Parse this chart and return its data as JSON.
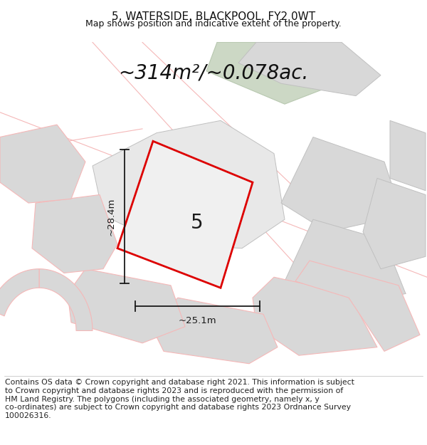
{
  "title_line1": "5, WATERSIDE, BLACKPOOL, FY2 0WT",
  "title_line2": "Map shows position and indicative extent of the property.",
  "area_text": "~314m²/~0.078ac.",
  "label_number": "5",
  "dim_width": "~25.1m",
  "dim_height": "~28.4m",
  "footer_text": "Contains OS data © Crown copyright and database right 2021. This information is subject\nto Crown copyright and database rights 2023 and is reproduced with the permission of\nHM Land Registry. The polygons (including the associated geometry, namely x, y\nco-ordinates) are subject to Crown copyright and database rights 2023 Ordnance Survey\n100026316.",
  "bg_color": "#ffffff",
  "plot_fill_color": "#f0f0f0",
  "plot_edge_color": "#dd0000",
  "neighbor_fill_light": "#e8e8e8",
  "neighbor_fill": "#d8d8d8",
  "neighbor_edge_pink": "#f5b8b8",
  "neighbor_edge_gray": "#c0c0c0",
  "green_fill": "#ccd8c5",
  "green_edge": "#b8c8b0",
  "dim_line_color": "#1a1a1a",
  "title_fontsize": 11,
  "subtitle_fontsize": 9,
  "area_fontsize": 20,
  "label_fontsize": 20,
  "dim_fontsize": 9.5,
  "footer_fontsize": 7.8
}
